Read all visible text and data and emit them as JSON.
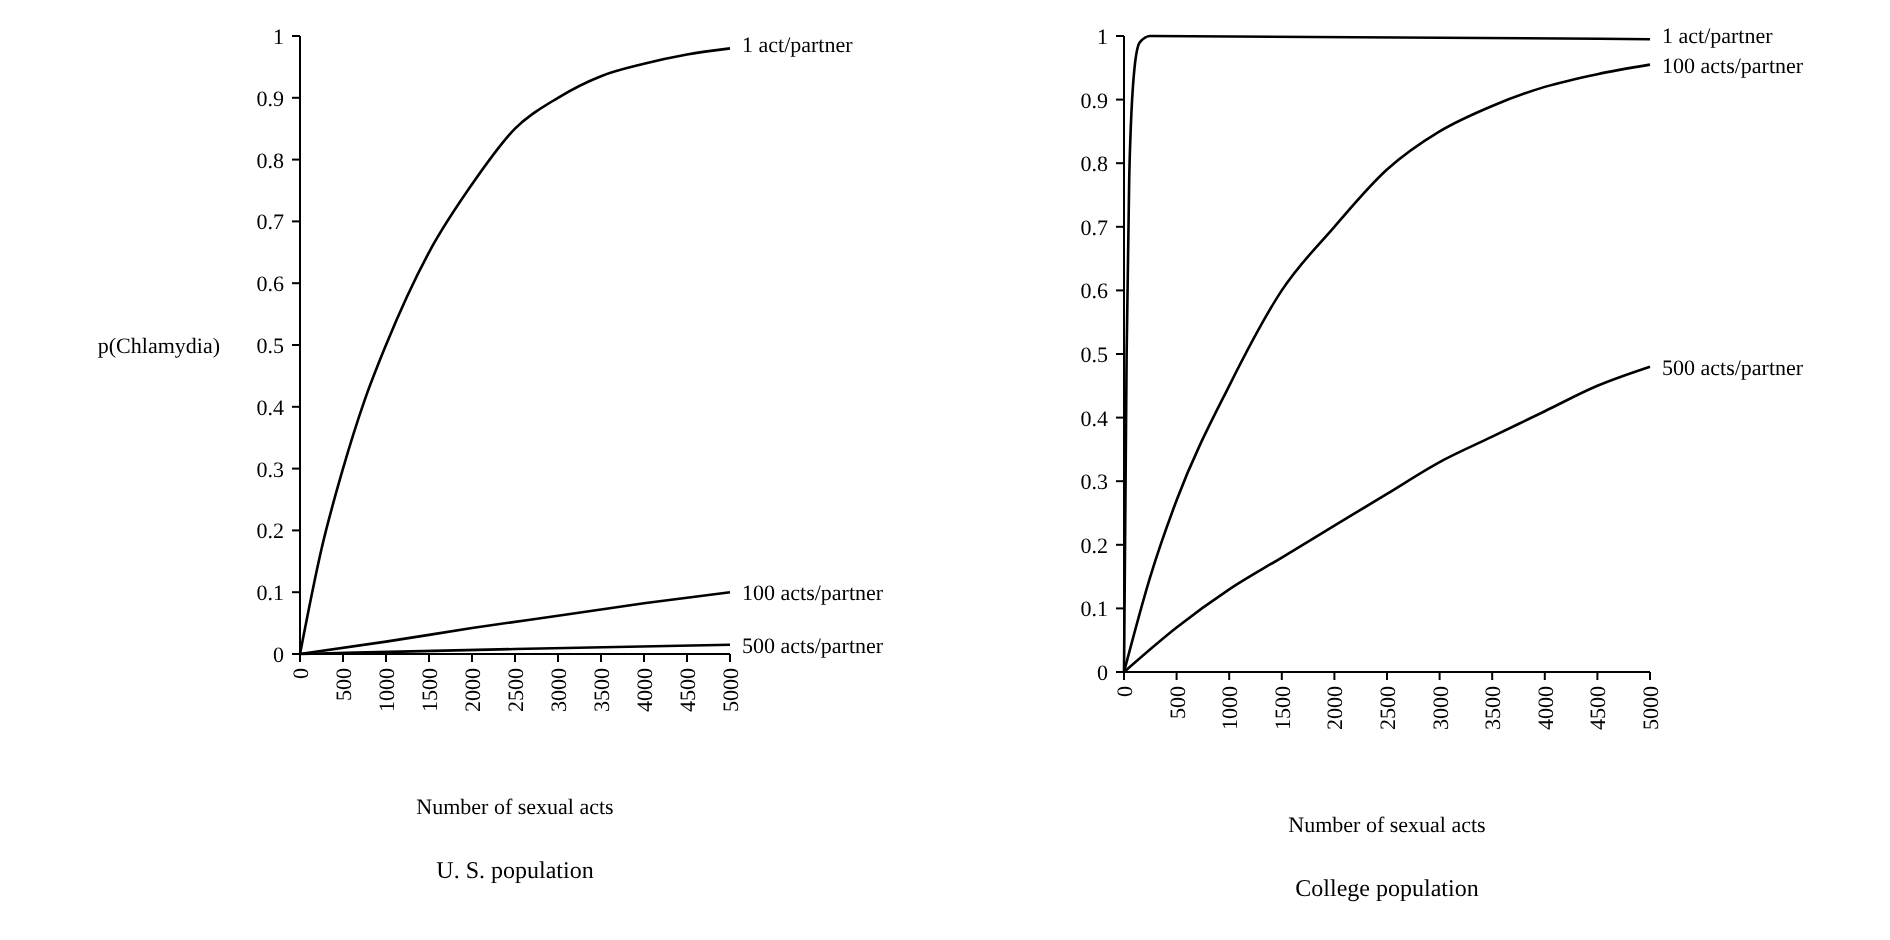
{
  "chart_data": [
    {
      "type": "line",
      "title": "U. S. population",
      "xlabel": "Number of sexual acts",
      "ylabel": "p(Chlamydia)",
      "xlim": [
        0,
        5000
      ],
      "xticks": [
        0,
        500,
        1000,
        1500,
        2000,
        2500,
        3000,
        3500,
        4000,
        4500,
        5000
      ],
      "ylim": [
        0,
        1
      ],
      "yticks": [
        0,
        0.1,
        0.2,
        0.3,
        0.4,
        0.5,
        0.6,
        0.7,
        0.8,
        0.9,
        1
      ],
      "grid": false,
      "marker": "none",
      "line_style": "solid",
      "series": [
        {
          "name": "1 act/partner",
          "color": "#000000",
          "x": [
            0,
            250,
            500,
            750,
            1000,
            1500,
            2000,
            2500,
            3000,
            3500,
            4000,
            4500,
            5000
          ],
          "values": [
            0,
            0.17,
            0.3,
            0.41,
            0.5,
            0.65,
            0.76,
            0.85,
            0.9,
            0.935,
            0.955,
            0.97,
            0.98
          ]
        },
        {
          "name": "100 acts/partner",
          "color": "#000000",
          "x": [
            0,
            1000,
            2000,
            3000,
            4000,
            5000
          ],
          "values": [
            0,
            0.02,
            0.042,
            0.062,
            0.082,
            0.1
          ]
        },
        {
          "name": "500 acts/partner",
          "color": "#000000",
          "x": [
            0,
            2500,
            5000
          ],
          "values": [
            0,
            0.008,
            0.015
          ]
        }
      ]
    },
    {
      "type": "line",
      "title": "College population",
      "xlabel": "Number of sexual acts",
      "xlim": [
        0,
        5000
      ],
      "xticks": [
        0,
        500,
        1000,
        1500,
        2000,
        2500,
        3000,
        3500,
        4000,
        4500,
        5000
      ],
      "ylim": [
        0,
        1
      ],
      "yticks": [
        0,
        0.1,
        0.2,
        0.3,
        0.4,
        0.5,
        0.6,
        0.7,
        0.8,
        0.9,
        1
      ],
      "grid": false,
      "marker": "none",
      "line_style": "solid",
      "series": [
        {
          "name": "1 act/partner",
          "color": "#000000",
          "x": [
            0,
            25,
            50,
            100,
            150,
            250,
            5000
          ],
          "values": [
            0,
            0.5,
            0.78,
            0.95,
            0.99,
            1,
            0.995
          ]
        },
        {
          "name": "100 acts/partner",
          "color": "#000000",
          "x": [
            0,
            250,
            500,
            1000,
            1500,
            2000,
            2500,
            3000,
            3500,
            4000,
            4500,
            5000
          ],
          "values": [
            0,
            0.15,
            0.27,
            0.45,
            0.6,
            0.7,
            0.79,
            0.85,
            0.89,
            0.92,
            0.94,
            0.955
          ]
        },
        {
          "name": "500 acts/partner",
          "color": "#000000",
          "x": [
            0,
            500,
            1000,
            1500,
            2000,
            2500,
            3000,
            3500,
            4000,
            4500,
            5000
          ],
          "values": [
            0,
            0.07,
            0.13,
            0.18,
            0.23,
            0.28,
            0.33,
            0.37,
            0.41,
            0.45,
            0.48
          ]
        }
      ]
    }
  ]
}
